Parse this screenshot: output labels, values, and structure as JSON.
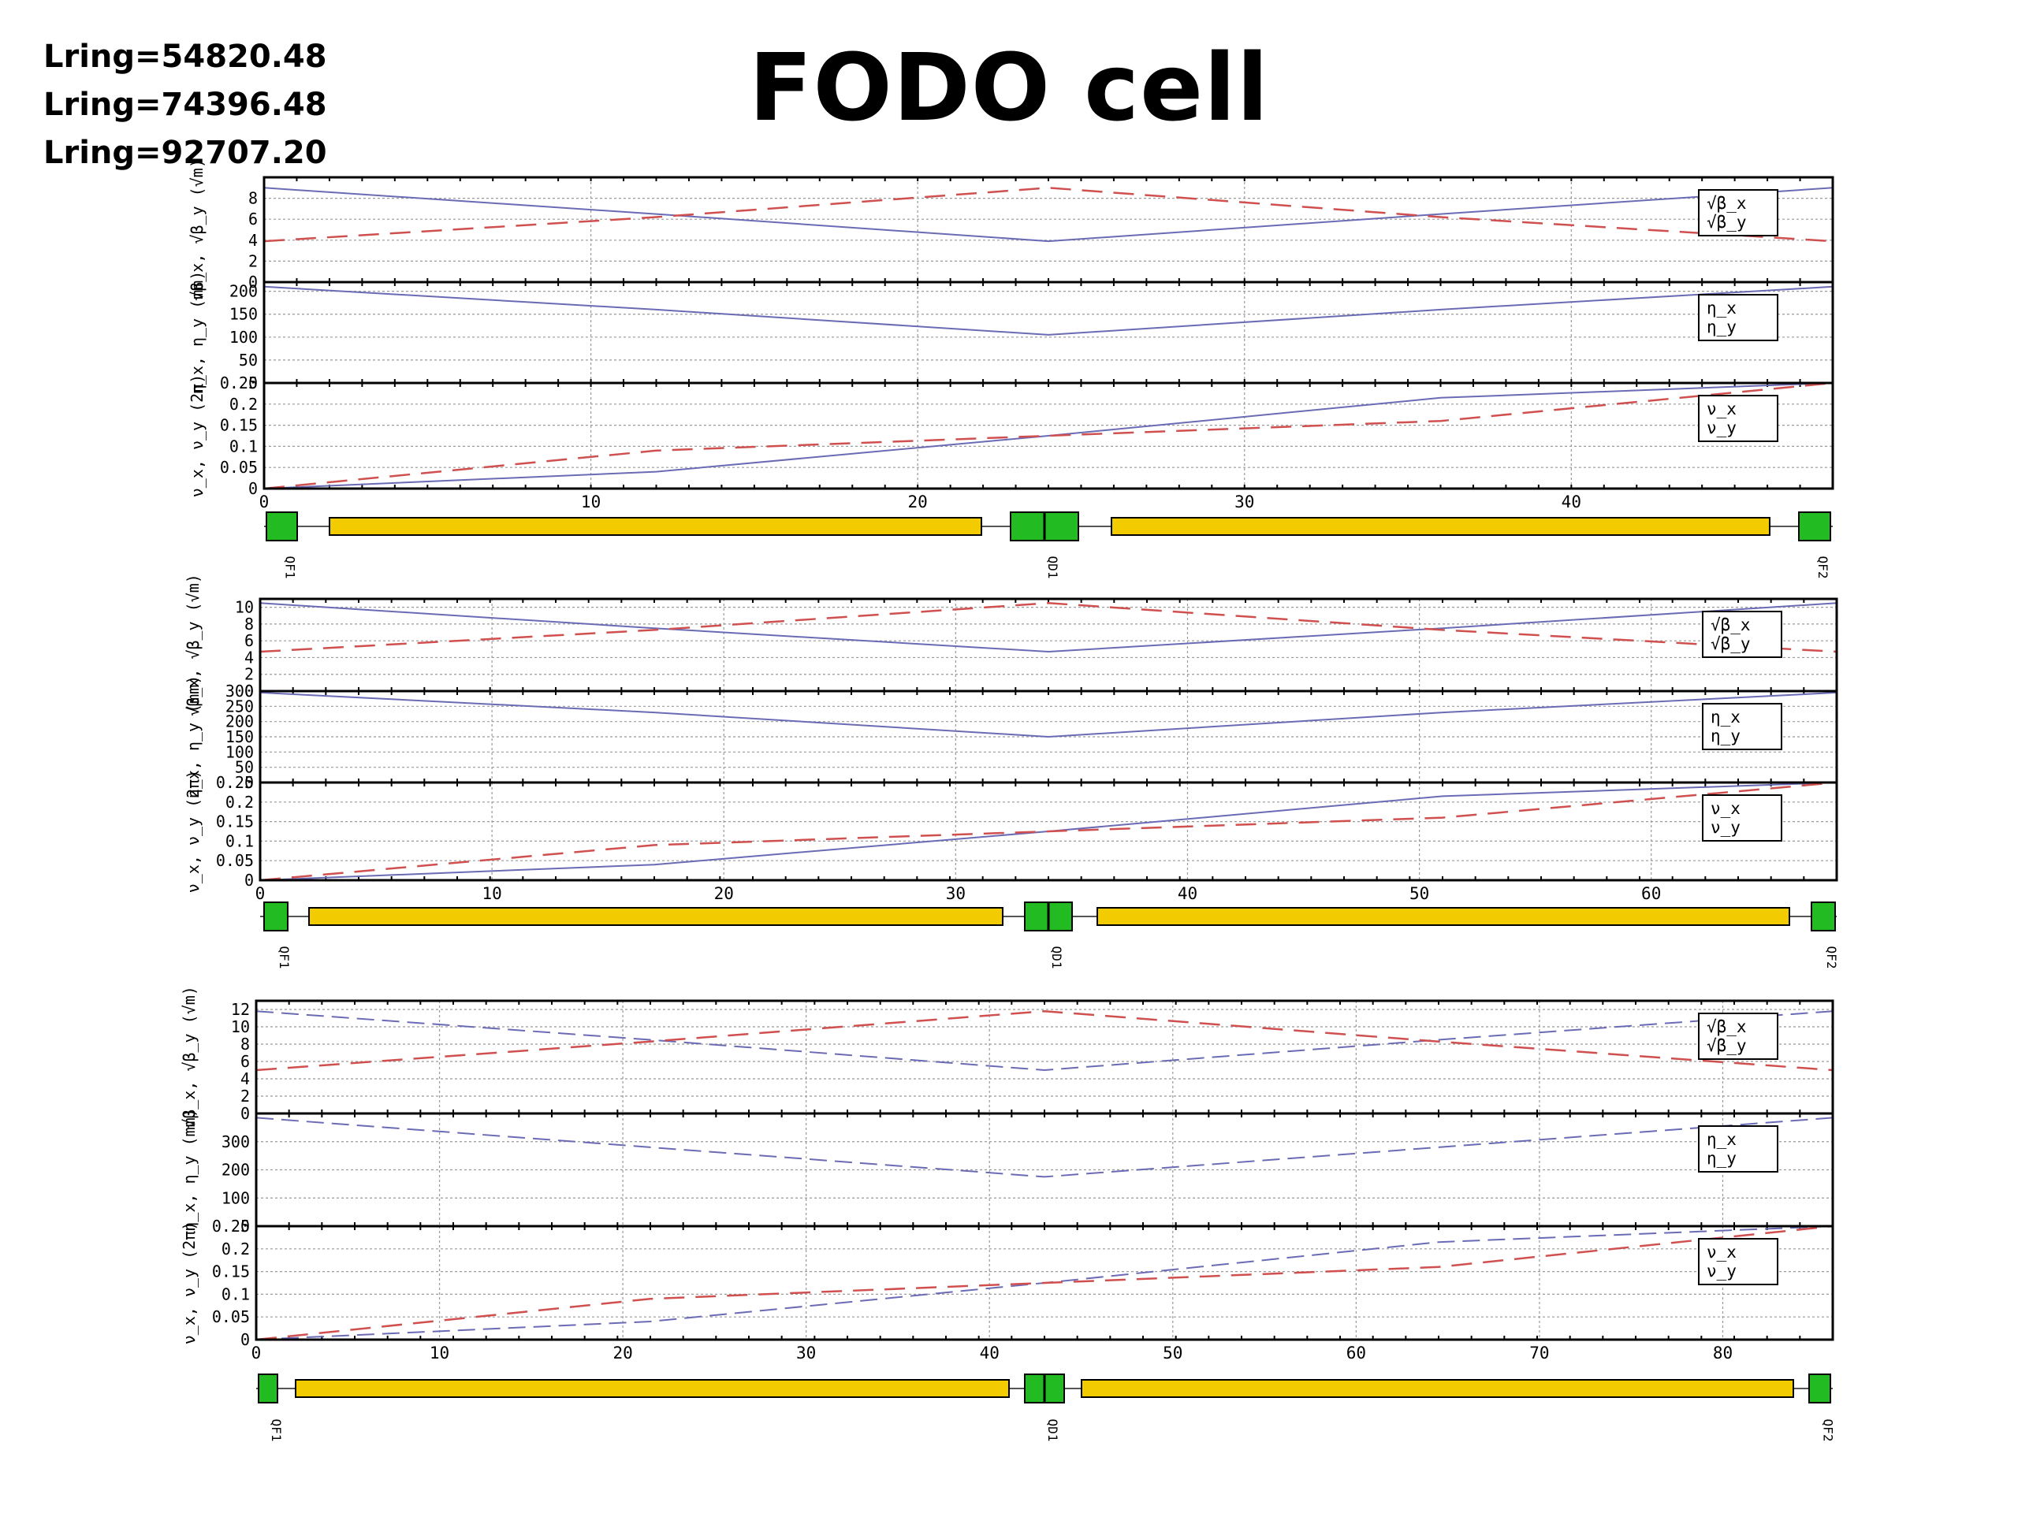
{
  "page": {
    "title": "FODO cell",
    "lring_labels": [
      "Lring=54820.48",
      "Lring=74396.48",
      "Lring=92707.20"
    ]
  },
  "chart_data": [
    {
      "type": "line",
      "x": {
        "ticks": [
          0,
          10,
          20,
          30,
          40
        ],
        "xlim": [
          0,
          48
        ]
      },
      "grid": true,
      "panels": [
        {
          "ylabel": "√β_x, √β_y (√m)",
          "ylim": [
            0,
            10
          ],
          "yticks": [
            0,
            2,
            4,
            6,
            8
          ],
          "legend": [
            "√β_x",
            "√β_y"
          ],
          "series": [
            {
              "x": [
                0,
                12,
                24,
                36,
                48
              ],
              "values": [
                9.0,
                6.5,
                3.9,
                6.5,
                9.0
              ],
              "color": "#6b6bb5"
            },
            {
              "x": [
                0,
                12,
                24,
                36,
                48
              ],
              "values": [
                3.9,
                6.2,
                9.0,
                6.2,
                3.9
              ],
              "color": "#d05050"
            }
          ]
        },
        {
          "ylabel": "η_x, η_y (mm)",
          "ylim": [
            0,
            220
          ],
          "yticks": [
            0,
            50,
            100,
            150,
            200
          ],
          "legend": [
            "η_x",
            "η_y"
          ],
          "series": [
            {
              "x": [
                0,
                12,
                24,
                36,
                48
              ],
              "values": [
                210,
                160,
                105,
                160,
                210
              ],
              "color": "#6b6bb5"
            },
            {
              "x": [
                0,
                48
              ],
              "values": [
                0,
                0
              ],
              "color": "#d05050"
            }
          ]
        },
        {
          "ylabel": "ν_x, ν_y (2π)",
          "ylim": [
            0,
            0.25
          ],
          "yticks": [
            0,
            0.05,
            0.1,
            0.15,
            0.2,
            0.25
          ],
          "legend": [
            "ν_x",
            "ν_y"
          ],
          "series": [
            {
              "x": [
                0,
                12,
                24,
                36,
                48
              ],
              "values": [
                0,
                0.04,
                0.125,
                0.215,
                0.25
              ],
              "color": "#6b6bb5"
            },
            {
              "x": [
                0,
                12,
                24,
                36,
                48
              ],
              "values": [
                0,
                0.09,
                0.125,
                0.16,
                0.25
              ],
              "color": "#d05050"
            }
          ]
        }
      ],
      "lattice": {
        "labels": [
          "QF1",
          "QD1",
          "QF2"
        ]
      }
    },
    {
      "type": "line",
      "x": {
        "ticks": [
          0,
          10,
          20,
          30,
          40,
          50,
          60
        ],
        "xlim": [
          0,
          68
        ]
      },
      "grid": true,
      "panels": [
        {
          "ylabel": "√β_x, √β_y (√m)",
          "ylim": [
            0,
            11
          ],
          "yticks": [
            0,
            2,
            4,
            6,
            8,
            10
          ],
          "legend": [
            "√β_x",
            "√β_y"
          ],
          "series": [
            {
              "x": [
                0,
                17,
                34,
                51,
                68
              ],
              "values": [
                10.5,
                7.5,
                4.7,
                7.5,
                10.5
              ],
              "color": "#6b6bb5"
            },
            {
              "x": [
                0,
                17,
                34,
                51,
                68
              ],
              "values": [
                4.7,
                7.3,
                10.5,
                7.3,
                4.7
              ],
              "color": "#d05050"
            }
          ]
        },
        {
          "ylabel": "η_x, η_y (mm)",
          "ylim": [
            0,
            300
          ],
          "yticks": [
            0,
            50,
            100,
            150,
            200,
            250,
            300
          ],
          "legend": [
            "η_x",
            "η_y"
          ],
          "series": [
            {
              "x": [
                0,
                17,
                34,
                51,
                68
              ],
              "values": [
                295,
                230,
                150,
                230,
                295
              ],
              "color": "#6b6bb5"
            },
            {
              "x": [
                0,
                68
              ],
              "values": [
                0,
                0
              ],
              "color": "#d05050"
            }
          ]
        },
        {
          "ylabel": "ν_x, ν_y (2π)",
          "ylim": [
            0,
            0.25
          ],
          "yticks": [
            0,
            0.05,
            0.1,
            0.15,
            0.2,
            0.25
          ],
          "legend": [
            "ν_x",
            "ν_y"
          ],
          "series": [
            {
              "x": [
                0,
                17,
                34,
                51,
                68
              ],
              "values": [
                0,
                0.04,
                0.125,
                0.215,
                0.25
              ],
              "color": "#6b6bb5"
            },
            {
              "x": [
                0,
                17,
                34,
                51,
                68
              ],
              "values": [
                0,
                0.09,
                0.125,
                0.16,
                0.25
              ],
              "color": "#d05050"
            }
          ]
        }
      ],
      "lattice": {
        "labels": [
          "QF1",
          "QD1",
          "QF2"
        ]
      }
    },
    {
      "type": "line",
      "x": {
        "ticks": [
          0,
          10,
          20,
          30,
          40,
          50,
          60,
          70,
          80
        ],
        "xlim": [
          0,
          86
        ]
      },
      "grid": true,
      "panels": [
        {
          "ylabel": "√β_x, √β_y (√m)",
          "ylim": [
            0,
            13
          ],
          "yticks": [
            0,
            2,
            4,
            6,
            8,
            10,
            12
          ],
          "legend": [
            "√β_x",
            "√β_y"
          ],
          "series": [
            {
              "x": [
                0,
                21.5,
                43,
                64.5,
                86
              ],
              "values": [
                11.8,
                8.5,
                5.0,
                8.5,
                11.8
              ],
              "color": "#6b6bb5"
            },
            {
              "x": [
                0,
                21.5,
                43,
                64.5,
                86
              ],
              "values": [
                5.0,
                8.3,
                11.8,
                8.3,
                5.0
              ],
              "color": "#d05050"
            }
          ]
        },
        {
          "ylabel": "η_x, η_y (mm)",
          "ylim": [
            0,
            400
          ],
          "yticks": [
            0,
            100,
            200,
            300
          ],
          "legend": [
            "η_x",
            "η_y"
          ],
          "series": [
            {
              "x": [
                0,
                21.5,
                43,
                64.5,
                86
              ],
              "values": [
                385,
                280,
                175,
                280,
                385
              ],
              "color": "#6b6bb5"
            },
            {
              "x": [
                0,
                86
              ],
              "values": [
                0,
                0
              ],
              "color": "#d05050"
            }
          ]
        },
        {
          "ylabel": "ν_x, ν_y (2π)",
          "ylim": [
            0,
            0.25
          ],
          "yticks": [
            0,
            0.05,
            0.1,
            0.15,
            0.2,
            0.25
          ],
          "legend": [
            "ν_x",
            "ν_y"
          ],
          "series": [
            {
              "x": [
                0,
                21.5,
                43,
                64.5,
                86
              ],
              "values": [
                0,
                0.04,
                0.125,
                0.215,
                0.25
              ],
              "color": "#6b6bb5"
            },
            {
              "x": [
                0,
                21.5,
                43,
                64.5,
                86
              ],
              "values": [
                0,
                0.09,
                0.125,
                0.16,
                0.25
              ],
              "color": "#d05050"
            }
          ]
        }
      ],
      "lattice": {
        "labels": [
          "QF1",
          "QD1",
          "QF2"
        ]
      }
    }
  ],
  "colors": {
    "quadrupole": "#22bb22",
    "dipole": "#f2cc00",
    "frame": "#000000",
    "grid": "#999999"
  }
}
